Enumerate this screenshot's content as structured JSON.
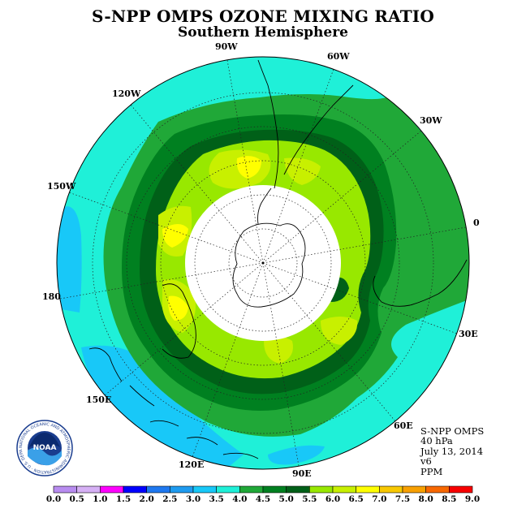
{
  "title": "S-NPP OMPS OZONE MIXING RATIO",
  "subtitle": "Southern Hemisphere",
  "longitude_labels": [
    "90W",
    "60W",
    "30W",
    "0",
    "30E",
    "60E",
    "90E",
    "120E",
    "150E",
    "180",
    "150W",
    "120W"
  ],
  "info": {
    "instrument": "S-NPP OMPS",
    "pressure": "40 hPa",
    "date": "July 13, 2014",
    "version": "v6",
    "units": "PPM"
  },
  "logo": {
    "name": "NOAA",
    "ring_text": "NATIONAL OCEANIC AND ATMOSPHERIC ADMINISTRATION · U.S. DEPARTMENT OF COMMERCE"
  },
  "colorbar": {
    "ticks": [
      "0.0",
      "0.5",
      "1.0",
      "1.5",
      "2.0",
      "2.5",
      "3.0",
      "3.5",
      "4.0",
      "4.5",
      "5.0",
      "5.5",
      "6.0",
      "6.5",
      "7.0",
      "7.5",
      "8.0",
      "8.5",
      "9.0"
    ],
    "colors": [
      "#b88cf0",
      "#d6b0f5",
      "#ff00ff",
      "#0000ff",
      "#1e78f0",
      "#1e9bf0",
      "#18c8f8",
      "#1ff0d8",
      "#20a838",
      "#008020",
      "#006018",
      "#98e800",
      "#c8f000",
      "#ffff00",
      "#f8c800",
      "#f8a000",
      "#f86800",
      "#f80000",
      "#a06040"
    ]
  },
  "colors": {
    "ocean_cyan": "#1ff0d8",
    "sky_blue": "#18c8f8",
    "green_4_0": "#20a838",
    "green_4_5": "#008020",
    "dark_green_5_0": "#006018",
    "yellow_green_5_5": "#98e800",
    "lime_6_0": "#c8f000",
    "yellow_6_5": "#ffff00"
  }
}
